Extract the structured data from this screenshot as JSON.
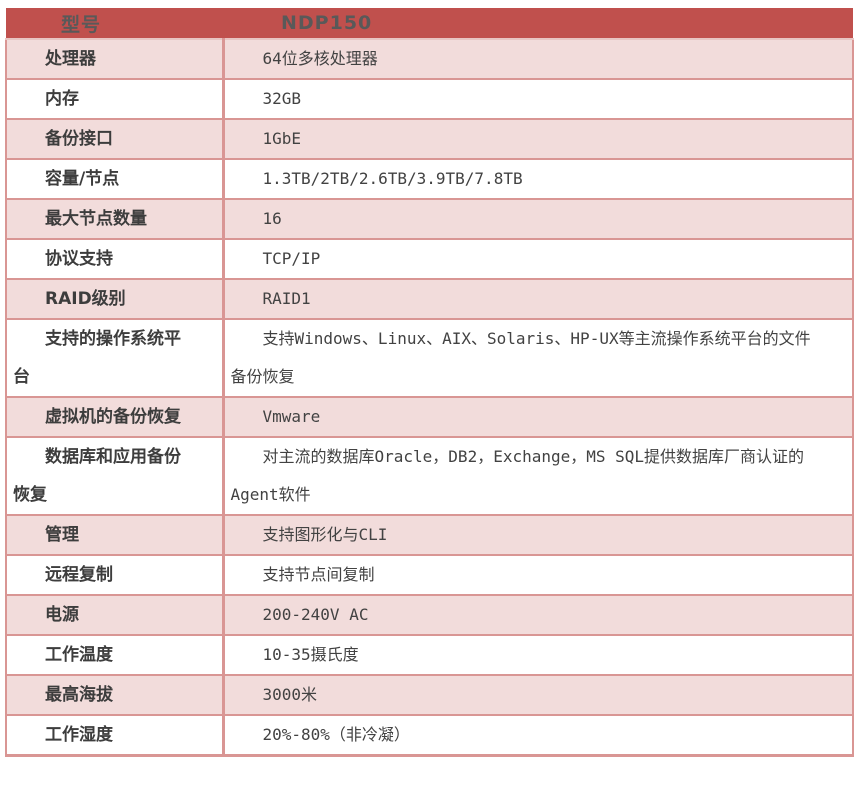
{
  "colors": {
    "header-bg": "#C0504D",
    "header-text": "#595959",
    "header-sep": "#E8C4C2",
    "border": "#D99694",
    "row-pink-bg": "#F2DCDB",
    "row-white-bg": "#FFFFFF",
    "label-text": "#3D3D3D",
    "value-text": "#424242"
  },
  "table": {
    "header": {
      "col1": "型号",
      "col2": "NDP150"
    },
    "rows": [
      {
        "label": "处理器",
        "value": "64位多核处理器"
      },
      {
        "label": "内存",
        "value": "32GB"
      },
      {
        "label": "备份接口",
        "value": "1GbE"
      },
      {
        "label": "容量/节点",
        "value": "1.3TB/2TB/2.6TB/3.9TB/7.8TB"
      },
      {
        "label": "最大节点数量",
        "value": "16"
      },
      {
        "label": "协议支持",
        "value": "TCP/IP"
      },
      {
        "label": "RAID级别",
        "value": "RAID1"
      },
      {
        "label": "支持的操作系统平\n台",
        "value": "支持Windows、Linux、AIX、Solaris、HP-UX等主流操作系统平台的文件\n备份恢复"
      },
      {
        "label": "虚拟机的备份恢复",
        "value": "Vmware"
      },
      {
        "label": "数据库和应用备份\n恢复",
        "value": "对主流的数据库Oracle，DB2，Exchange，MS SQL提供数据库厂商认证的\nAgent软件"
      },
      {
        "label": "管理",
        "value": "支持图形化与CLI"
      },
      {
        "label": "远程复制",
        "value": "支持节点间复制"
      },
      {
        "label": "电源",
        "value": "200-240V AC"
      },
      {
        "label": "工作温度",
        "value": "10-35摄氏度"
      },
      {
        "label": "最高海拔",
        "value": "3000米"
      },
      {
        "label": "工作湿度",
        "value": "20%-80%（非冷凝）"
      }
    ]
  }
}
